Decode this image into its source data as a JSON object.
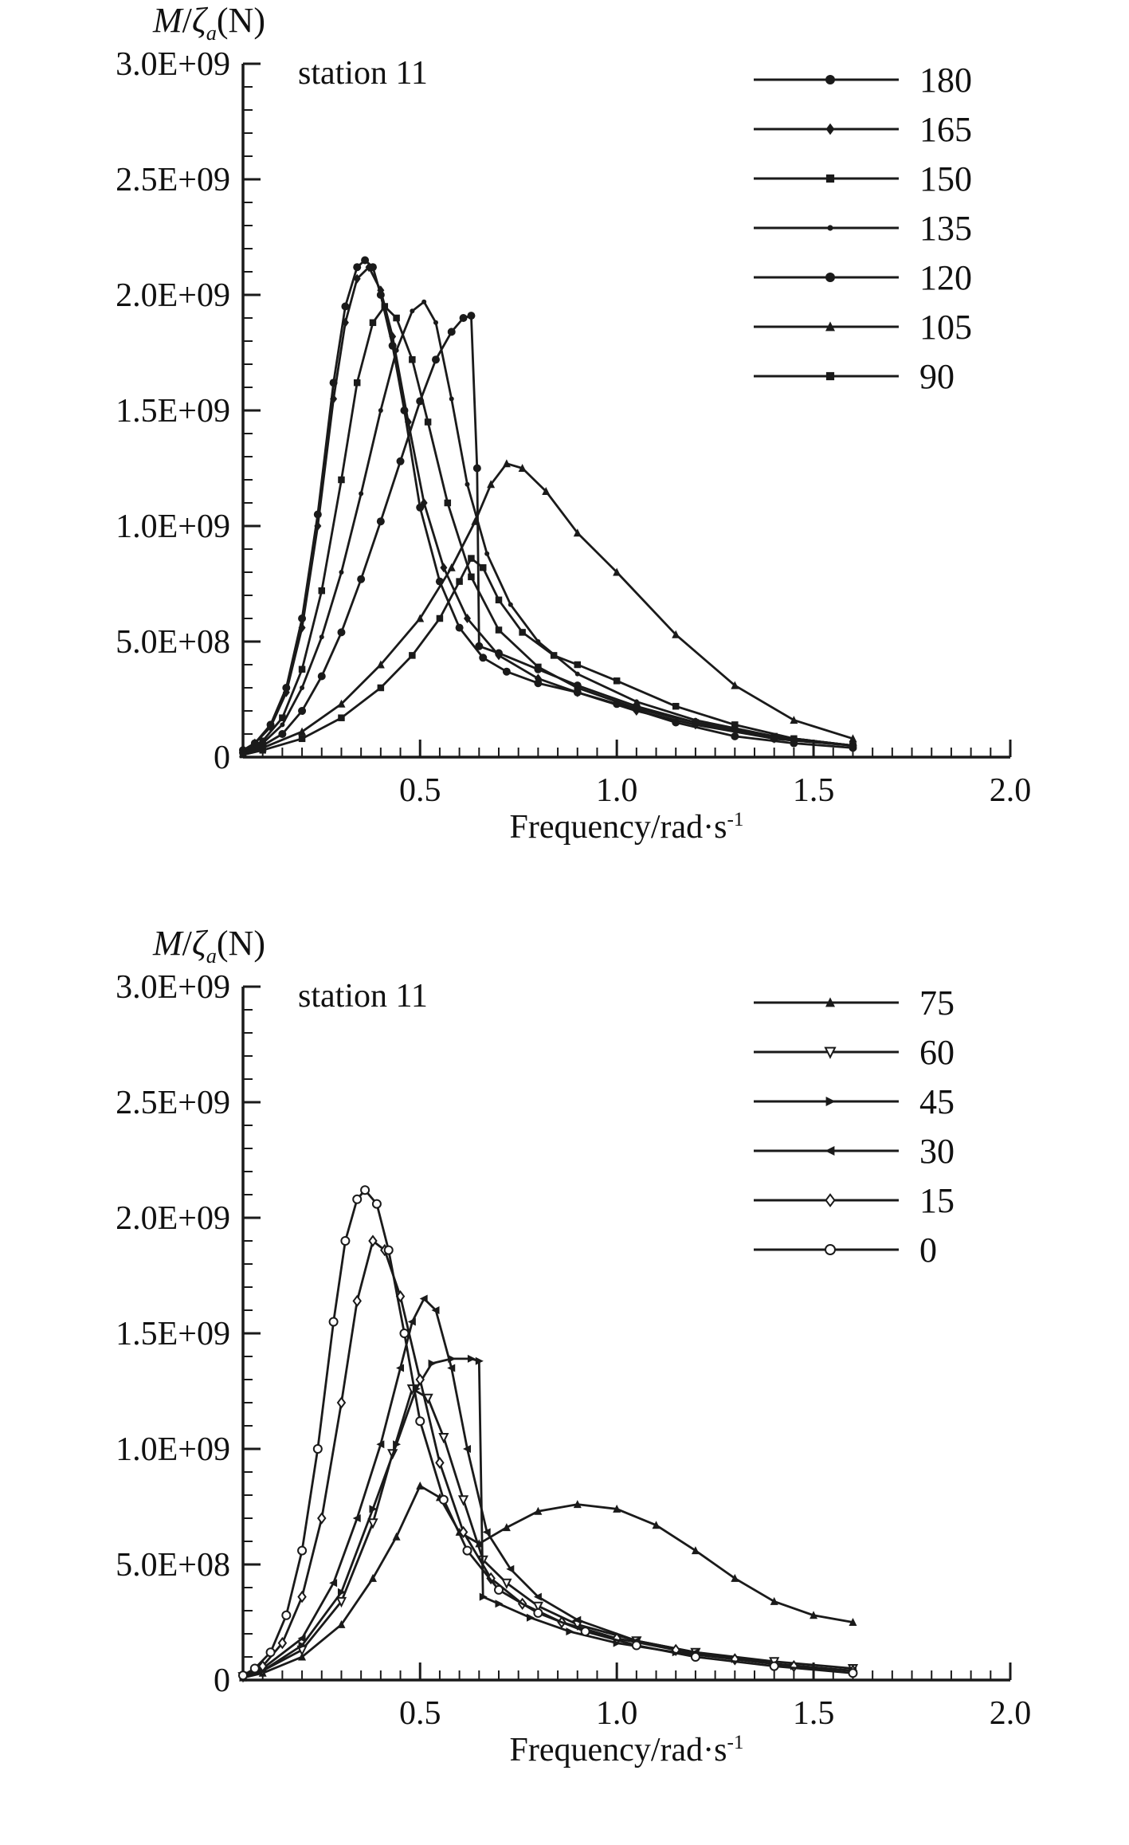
{
  "meta": {
    "background": "#ffffff",
    "line_color": "#1a1a1a",
    "text_color": "#111111"
  },
  "chart_data": [
    {
      "type": "line",
      "title": "station 11",
      "ylabel": "M/ζa(N)",
      "ylabel_parts": {
        "m": "M",
        "slash": "/",
        "zeta": "ζ",
        "sub": "a",
        "unit": "(N)"
      },
      "xlabel": "Frequency/rad·s⁻¹",
      "xlabel_parts": {
        "base": "Frequency/rad·s",
        "sup": "-1"
      },
      "xlim": [
        0.05,
        2.0
      ],
      "ylim": [
        0,
        3000000000.0
      ],
      "x_minor_step": 0.05,
      "y_minor_step": 100000000.0,
      "x_ticks": [
        {
          "v": 0.5,
          "label": "0.5"
        },
        {
          "v": 1.0,
          "label": "1.0"
        },
        {
          "v": 1.5,
          "label": "1.5"
        },
        {
          "v": 2.0,
          "label": "2.0"
        }
      ],
      "y_ticks": [
        {
          "v": 0,
          "label": "0"
        },
        {
          "v": 500000000.0,
          "label": "5.0E+08"
        },
        {
          "v": 1000000000.0,
          "label": "1.0E+09"
        },
        {
          "v": 1500000000.0,
          "label": "1.5E+09"
        },
        {
          "v": 2000000000.0,
          "label": "2.0E+09"
        },
        {
          "v": 2500000000.0,
          "label": "2.5E+09"
        },
        {
          "v": 3000000000.0,
          "label": "3.0E+09"
        }
      ],
      "legend": {
        "position": "top-right"
      },
      "series": [
        {
          "name": "180",
          "marker": "circle",
          "x": [
            0.05,
            0.08,
            0.12,
            0.16,
            0.2,
            0.24,
            0.28,
            0.31,
            0.34,
            0.36,
            0.38,
            0.4,
            0.43,
            0.46,
            0.5,
            0.55,
            0.6,
            0.66,
            0.72,
            0.8,
            0.9,
            1.0,
            1.15,
            1.3,
            1.45,
            1.6
          ],
          "y": [
            30000000.0,
            60000000.0,
            140000000.0,
            300000000.0,
            600000000.0,
            1050000000.0,
            1620000000.0,
            1950000000.0,
            2120000000.0,
            2150000000.0,
            2120000000.0,
            2000000000.0,
            1780000000.0,
            1500000000.0,
            1080000000.0,
            760000000.0,
            560000000.0,
            430000000.0,
            370000000.0,
            320000000.0,
            280000000.0,
            230000000.0,
            150000000.0,
            90000000.0,
            60000000.0,
            40000000.0
          ]
        },
        {
          "name": "165",
          "marker": "diamond",
          "x": [
            0.05,
            0.08,
            0.12,
            0.16,
            0.2,
            0.24,
            0.28,
            0.31,
            0.34,
            0.37,
            0.4,
            0.43,
            0.47,
            0.51,
            0.56,
            0.62,
            0.7,
            0.8,
            0.9,
            1.05,
            1.2,
            1.4,
            1.6
          ],
          "y": [
            30000000.0,
            60000000.0,
            130000000.0,
            280000000.0,
            560000000.0,
            1000000000.0,
            1550000000.0,
            1880000000.0,
            2070000000.0,
            2120000000.0,
            2020000000.0,
            1820000000.0,
            1450000000.0,
            1100000000.0,
            820000000.0,
            600000000.0,
            440000000.0,
            340000000.0,
            280000000.0,
            200000000.0,
            140000000.0,
            80000000.0,
            50000000.0
          ]
        },
        {
          "name": "150",
          "marker": "square",
          "x": [
            0.05,
            0.1,
            0.15,
            0.2,
            0.25,
            0.3,
            0.34,
            0.38,
            0.41,
            0.44,
            0.48,
            0.52,
            0.57,
            0.63,
            0.7,
            0.8,
            0.9,
            1.05,
            1.2,
            1.4,
            1.6
          ],
          "y": [
            25000000.0,
            70000000.0,
            170000000.0,
            380000000.0,
            720000000.0,
            1200000000.0,
            1620000000.0,
            1880000000.0,
            1950000000.0,
            1900000000.0,
            1720000000.0,
            1450000000.0,
            1100000000.0,
            780000000.0,
            550000000.0,
            390000000.0,
            300000000.0,
            210000000.0,
            150000000.0,
            90000000.0,
            50000000.0
          ]
        },
        {
          "name": "135",
          "marker": "dot",
          "x": [
            0.05,
            0.1,
            0.15,
            0.2,
            0.25,
            0.3,
            0.35,
            0.4,
            0.44,
            0.48,
            0.51,
            0.54,
            0.58,
            0.62,
            0.67,
            0.73,
            0.8,
            0.9,
            1.05,
            1.2,
            1.4,
            1.6
          ],
          "y": [
            20000000.0,
            60000000.0,
            140000000.0,
            300000000.0,
            520000000.0,
            800000000.0,
            1140000000.0,
            1500000000.0,
            1760000000.0,
            1930000000.0,
            1970000000.0,
            1880000000.0,
            1550000000.0,
            1180000000.0,
            880000000.0,
            660000000.0,
            500000000.0,
            360000000.0,
            240000000.0,
            160000000.0,
            90000000.0,
            50000000.0
          ]
        },
        {
          "name": "120",
          "marker": "circle",
          "x": [
            0.05,
            0.1,
            0.15,
            0.2,
            0.25,
            0.3,
            0.35,
            0.4,
            0.45,
            0.5,
            0.54,
            0.58,
            0.61,
            0.63,
            0.645,
            0.65,
            0.7,
            0.8,
            0.9,
            1.05,
            1.2,
            1.4,
            1.6
          ],
          "y": [
            20000000.0,
            50000000.0,
            100000000.0,
            200000000.0,
            350000000.0,
            540000000.0,
            770000000.0,
            1020000000.0,
            1280000000.0,
            1540000000.0,
            1720000000.0,
            1840000000.0,
            1900000000.0,
            1910000000.0,
            1250000000.0,
            480000000.0,
            450000000.0,
            380000000.0,
            310000000.0,
            220000000.0,
            150000000.0,
            80000000.0,
            50000000.0
          ]
        },
        {
          "name": "105",
          "marker": "tri-up",
          "x": [
            0.05,
            0.1,
            0.2,
            0.3,
            0.4,
            0.5,
            0.58,
            0.64,
            0.68,
            0.72,
            0.76,
            0.82,
            0.9,
            1.0,
            1.15,
            1.3,
            1.45,
            1.6
          ],
          "y": [
            15000000.0,
            40000000.0,
            110000000.0,
            230000000.0,
            400000000.0,
            600000000.0,
            820000000.0,
            1020000000.0,
            1180000000.0,
            1270000000.0,
            1250000000.0,
            1150000000.0,
            970000000.0,
            800000000.0,
            530000000.0,
            310000000.0,
            160000000.0,
            80000000.0
          ]
        },
        {
          "name": "90",
          "marker": "square",
          "x": [
            0.05,
            0.1,
            0.2,
            0.3,
            0.4,
            0.48,
            0.55,
            0.6,
            0.63,
            0.66,
            0.7,
            0.76,
            0.84,
            0.9,
            1.0,
            1.15,
            1.3,
            1.45,
            1.6
          ],
          "y": [
            10000000.0,
            30000000.0,
            80000000.0,
            170000000.0,
            300000000.0,
            440000000.0,
            600000000.0,
            760000000.0,
            860000000.0,
            820000000.0,
            680000000.0,
            540000000.0,
            440000000.0,
            400000000.0,
            330000000.0,
            220000000.0,
            140000000.0,
            80000000.0,
            50000000.0
          ]
        }
      ]
    },
    {
      "type": "line",
      "title": "station 11",
      "ylabel": "M/ζa(N)",
      "ylabel_parts": {
        "m": "M",
        "slash": "/",
        "zeta": "ζ",
        "sub": "a",
        "unit": "(N)"
      },
      "xlabel": "Frequency/rad·s⁻¹",
      "xlabel_parts": {
        "base": "Frequency/rad·s",
        "sup": "-1"
      },
      "xlim": [
        0.05,
        2.0
      ],
      "ylim": [
        0,
        3000000000.0
      ],
      "x_minor_step": 0.05,
      "y_minor_step": 100000000.0,
      "x_ticks": [
        {
          "v": 0.5,
          "label": "0.5"
        },
        {
          "v": 1.0,
          "label": "1.0"
        },
        {
          "v": 1.5,
          "label": "1.5"
        },
        {
          "v": 2.0,
          "label": "2.0"
        }
      ],
      "y_ticks": [
        {
          "v": 0,
          "label": "0"
        },
        {
          "v": 500000000.0,
          "label": "5.0E+08"
        },
        {
          "v": 1000000000.0,
          "label": "1.0E+09"
        },
        {
          "v": 1500000000.0,
          "label": "1.5E+09"
        },
        {
          "v": 2000000000.0,
          "label": "2.0E+09"
        },
        {
          "v": 2500000000.0,
          "label": "2.5E+09"
        },
        {
          "v": 3000000000.0,
          "label": "3.0E+09"
        }
      ],
      "legend": {
        "position": "top-right"
      },
      "series": [
        {
          "name": "75",
          "marker": "tri-up",
          "x": [
            0.05,
            0.1,
            0.2,
            0.3,
            0.38,
            0.44,
            0.5,
            0.55,
            0.6,
            0.65,
            0.72,
            0.8,
            0.9,
            1.0,
            1.1,
            1.2,
            1.3,
            1.4,
            1.5,
            1.6
          ],
          "y": [
            10000000.0,
            30000000.0,
            100000000.0,
            240000000.0,
            440000000.0,
            620000000.0,
            840000000.0,
            790000000.0,
            640000000.0,
            590000000.0,
            660000000.0,
            730000000.0,
            760000000.0,
            740000000.0,
            670000000.0,
            560000000.0,
            440000000.0,
            340000000.0,
            280000000.0,
            250000000.0
          ]
        },
        {
          "name": "60",
          "marker": "open-tri-down",
          "x": [
            0.05,
            0.1,
            0.2,
            0.3,
            0.38,
            0.43,
            0.48,
            0.52,
            0.56,
            0.61,
            0.66,
            0.72,
            0.8,
            0.9,
            1.05,
            1.2,
            1.4,
            1.6
          ],
          "y": [
            15000000.0,
            40000000.0,
            130000000.0,
            340000000.0,
            680000000.0,
            980000000.0,
            1260000000.0,
            1220000000.0,
            1050000000.0,
            780000000.0,
            520000000.0,
            420000000.0,
            320000000.0,
            240000000.0,
            170000000.0,
            120000000.0,
            80000000.0,
            50000000.0
          ]
        },
        {
          "name": "45",
          "marker": "tri-right",
          "x": [
            0.05,
            0.1,
            0.2,
            0.3,
            0.38,
            0.44,
            0.49,
            0.53,
            0.58,
            0.63,
            0.65,
            0.66,
            0.7,
            0.78,
            0.88,
            1.0,
            1.15,
            1.3,
            1.45,
            1.6
          ],
          "y": [
            15000000.0,
            40000000.0,
            150000000.0,
            380000000.0,
            740000000.0,
            1020000000.0,
            1260000000.0,
            1370000000.0,
            1390000000.0,
            1390000000.0,
            1380000000.0,
            360000000.0,
            330000000.0,
            270000000.0,
            210000000.0,
            160000000.0,
            120000000.0,
            90000000.0,
            60000000.0,
            40000000.0
          ]
        },
        {
          "name": "30",
          "marker": "tri-left",
          "x": [
            0.05,
            0.1,
            0.2,
            0.28,
            0.34,
            0.4,
            0.45,
            0.48,
            0.51,
            0.54,
            0.58,
            0.62,
            0.67,
            0.73,
            0.8,
            0.9,
            1.05,
            1.2,
            1.4,
            1.6
          ],
          "y": [
            20000000.0,
            50000000.0,
            180000000.0,
            420000000.0,
            700000000.0,
            1020000000.0,
            1350000000.0,
            1550000000.0,
            1650000000.0,
            1600000000.0,
            1350000000.0,
            1000000000.0,
            640000000.0,
            480000000.0,
            360000000.0,
            260000000.0,
            170000000.0,
            120000000.0,
            70000000.0,
            40000000.0
          ]
        },
        {
          "name": "15",
          "marker": "open-diamond",
          "x": [
            0.05,
            0.1,
            0.15,
            0.2,
            0.25,
            0.3,
            0.34,
            0.38,
            0.41,
            0.45,
            0.5,
            0.55,
            0.61,
            0.68,
            0.76,
            0.86,
            1.0,
            1.15,
            1.3,
            1.45,
            1.6
          ],
          "y": [
            20000000.0,
            60000000.0,
            160000000.0,
            360000000.0,
            700000000.0,
            1200000000.0,
            1640000000.0,
            1900000000.0,
            1860000000.0,
            1660000000.0,
            1300000000.0,
            940000000.0,
            640000000.0,
            440000000.0,
            330000000.0,
            250000000.0,
            180000000.0,
            130000000.0,
            90000000.0,
            60000000.0,
            40000000.0
          ]
        },
        {
          "name": "0",
          "marker": "open-circle",
          "x": [
            0.05,
            0.08,
            0.12,
            0.16,
            0.2,
            0.24,
            0.28,
            0.31,
            0.34,
            0.36,
            0.39,
            0.42,
            0.46,
            0.5,
            0.56,
            0.62,
            0.7,
            0.8,
            0.92,
            1.05,
            1.2,
            1.4,
            1.6
          ],
          "y": [
            20000000.0,
            50000000.0,
            120000000.0,
            280000000.0,
            560000000.0,
            1000000000.0,
            1550000000.0,
            1900000000.0,
            2080000000.0,
            2120000000.0,
            2060000000.0,
            1860000000.0,
            1500000000.0,
            1120000000.0,
            780000000.0,
            560000000.0,
            390000000.0,
            290000000.0,
            210000000.0,
            150000000.0,
            100000000.0,
            60000000.0,
            30000000.0
          ]
        }
      ]
    }
  ]
}
